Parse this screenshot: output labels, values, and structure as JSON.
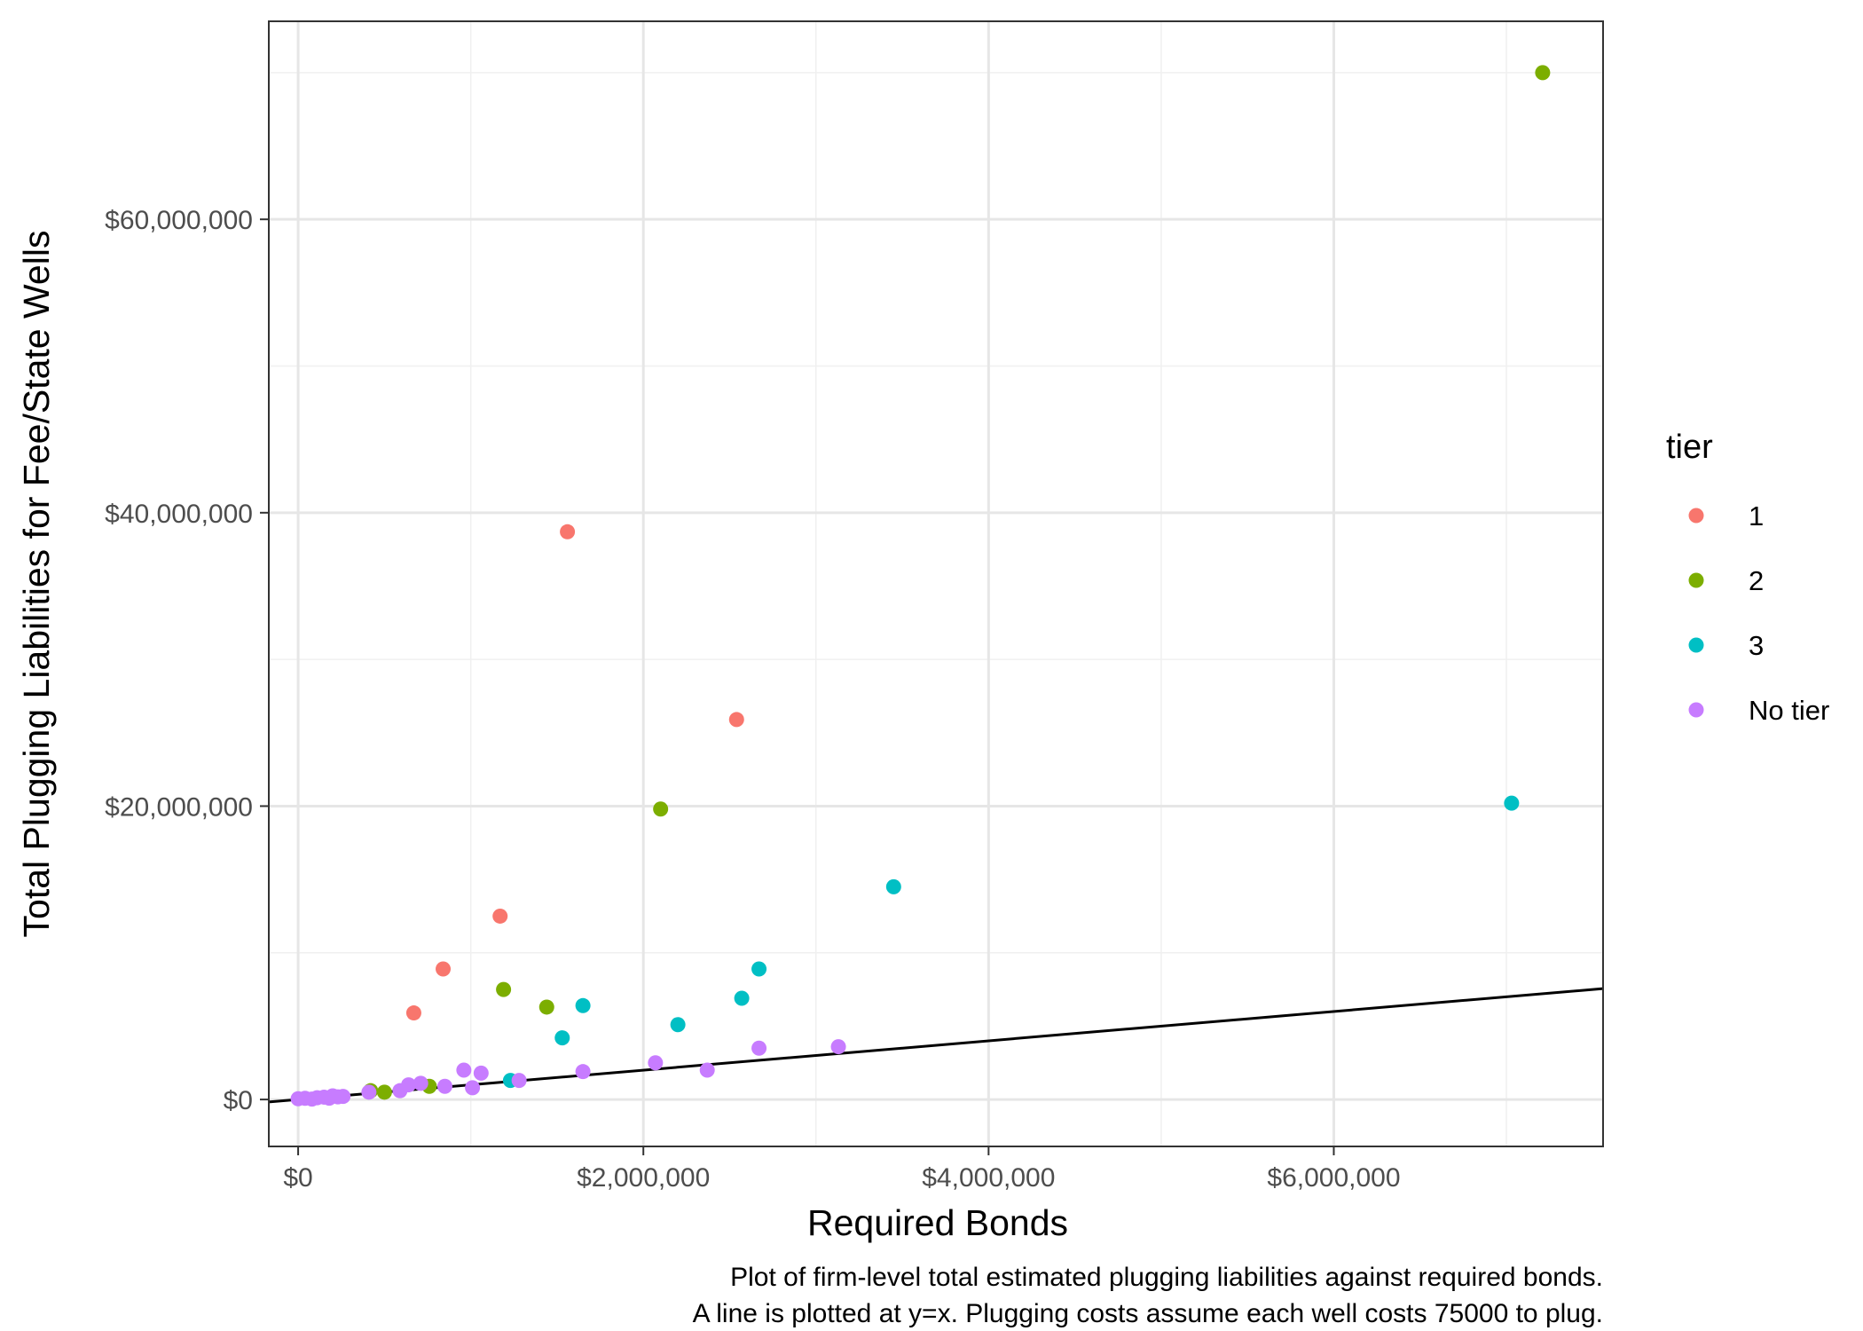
{
  "chart_data": {
    "type": "scatter",
    "xlabel": "Required Bonds",
    "ylabel": "Total Plugging Liabilities for Fee/State Wells",
    "xlim": [
      -170000,
      7560000
    ],
    "ylim": [
      -3200000,
      73500000
    ],
    "x_ticks": [
      {
        "value": 0,
        "label": "$0"
      },
      {
        "value": 2000000,
        "label": "$2,000,000"
      },
      {
        "value": 4000000,
        "label": "$4,000,000"
      },
      {
        "value": 6000000,
        "label": "$6,000,000"
      }
    ],
    "y_ticks": [
      {
        "value": 0,
        "label": "$0"
      },
      {
        "value": 20000000,
        "label": "$20,000,000"
      },
      {
        "value": 40000000,
        "label": "$40,000,000"
      },
      {
        "value": 60000000,
        "label": "$60,000,000"
      }
    ],
    "x_minor": [
      1000000,
      3000000,
      5000000,
      7000000
    ],
    "y_minor": [
      10000000,
      30000000,
      50000000,
      70000000
    ],
    "grid": true,
    "reference_line": {
      "type": "identity",
      "description": "y=x"
    },
    "legend": {
      "title": "tier",
      "placement": "right",
      "entries": [
        {
          "label": "1",
          "color": "#F8766D"
        },
        {
          "label": "2",
          "color": "#7CAE00"
        },
        {
          "label": "3",
          "color": "#00BFC4"
        },
        {
          "label": "No tier",
          "color": "#C77CFF"
        }
      ]
    },
    "series": [
      {
        "name": "1",
        "color": "#F8766D",
        "points": [
          [
            1560000,
            38700000
          ],
          [
            2540000,
            25900000
          ],
          [
            1170000,
            12500000
          ],
          [
            840000,
            8900000
          ],
          [
            670000,
            5900000
          ]
        ]
      },
      {
        "name": "2",
        "color": "#7CAE00",
        "points": [
          [
            7210000,
            70000000
          ],
          [
            2100000,
            19800000
          ],
          [
            1190000,
            7500000
          ],
          [
            1440000,
            6300000
          ],
          [
            420000,
            600000
          ],
          [
            500000,
            500000
          ],
          [
            760000,
            900000
          ]
        ]
      },
      {
        "name": "3",
        "color": "#00BFC4",
        "points": [
          [
            7030000,
            20200000
          ],
          [
            3450000,
            14500000
          ],
          [
            2670000,
            8900000
          ],
          [
            2570000,
            6900000
          ],
          [
            1650000,
            6400000
          ],
          [
            2200000,
            5100000
          ],
          [
            1530000,
            4200000
          ],
          [
            1230000,
            1300000
          ]
        ]
      },
      {
        "name": "No tier",
        "color": "#C77CFF",
        "points": [
          [
            0,
            50000
          ],
          [
            40000,
            80000
          ],
          [
            80000,
            30000
          ],
          [
            110000,
            120000
          ],
          [
            150000,
            160000
          ],
          [
            180000,
            90000
          ],
          [
            200000,
            250000
          ],
          [
            230000,
            180000
          ],
          [
            260000,
            210000
          ],
          [
            410000,
            500000
          ],
          [
            590000,
            600000
          ],
          [
            640000,
            1000000
          ],
          [
            710000,
            1100000
          ],
          [
            850000,
            900000
          ],
          [
            960000,
            2000000
          ],
          [
            1010000,
            800000
          ],
          [
            1060000,
            1800000
          ],
          [
            1280000,
            1300000
          ],
          [
            1650000,
            1900000
          ],
          [
            2070000,
            2500000
          ],
          [
            2370000,
            2000000
          ],
          [
            2670000,
            3500000
          ],
          [
            3130000,
            3600000
          ]
        ]
      }
    ]
  },
  "caption": {
    "line1": "Plot of firm-level total estimated plugging liabilities against required bonds.",
    "line2": "A line is plotted at y=x. Plugging costs assume each well costs 75000 to plug."
  }
}
